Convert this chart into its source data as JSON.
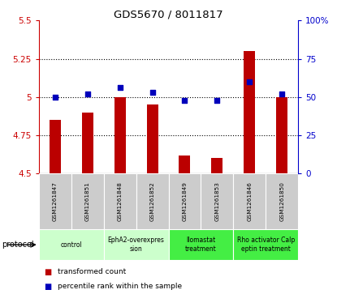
{
  "title": "GDS5670 / 8011817",
  "samples": [
    "GSM1261847",
    "GSM1261851",
    "GSM1261848",
    "GSM1261852",
    "GSM1261849",
    "GSM1261853",
    "GSM1261846",
    "GSM1261850"
  ],
  "red_values": [
    4.85,
    4.9,
    5.0,
    4.95,
    4.62,
    4.6,
    5.3,
    5.0
  ],
  "blue_values": [
    50,
    52,
    56,
    53,
    48,
    48,
    60,
    52
  ],
  "ylim_left": [
    4.5,
    5.5
  ],
  "ylim_right": [
    0,
    100
  ],
  "yticks_left": [
    4.5,
    4.75,
    5.0,
    5.25,
    5.5
  ],
  "ytick_labels_left": [
    "4.5",
    "4.75",
    "5",
    "5.25",
    "5.5"
  ],
  "yticks_right": [
    0,
    25,
    50,
    75,
    100
  ],
  "ytick_labels_right": [
    "0",
    "25",
    "50",
    "75",
    "100%"
  ],
  "protocols": [
    {
      "label": "control",
      "span": [
        0,
        2
      ],
      "color": "#ccffcc"
    },
    {
      "label": "EphA2-overexpres\nsion",
      "span": [
        2,
        4
      ],
      "color": "#ccffcc"
    },
    {
      "label": "Ilomastat\ntreatment",
      "span": [
        4,
        6
      ],
      "color": "#44ee44"
    },
    {
      "label": "Rho activator Calp\neptin treatment",
      "span": [
        6,
        8
      ],
      "color": "#44ee44"
    }
  ],
  "bar_color": "#bb0000",
  "dot_color": "#0000bb",
  "bar_baseline": 4.5,
  "blue_dot_size": 20,
  "grid_color": "#000000",
  "bg_color": "#ffffff",
  "sample_bg_color": "#cccccc",
  "legend_items": [
    {
      "label": "transformed count",
      "color": "#bb0000"
    },
    {
      "label": "percentile rank within the sample",
      "color": "#0000bb"
    }
  ],
  "protocol_label": "protocol"
}
